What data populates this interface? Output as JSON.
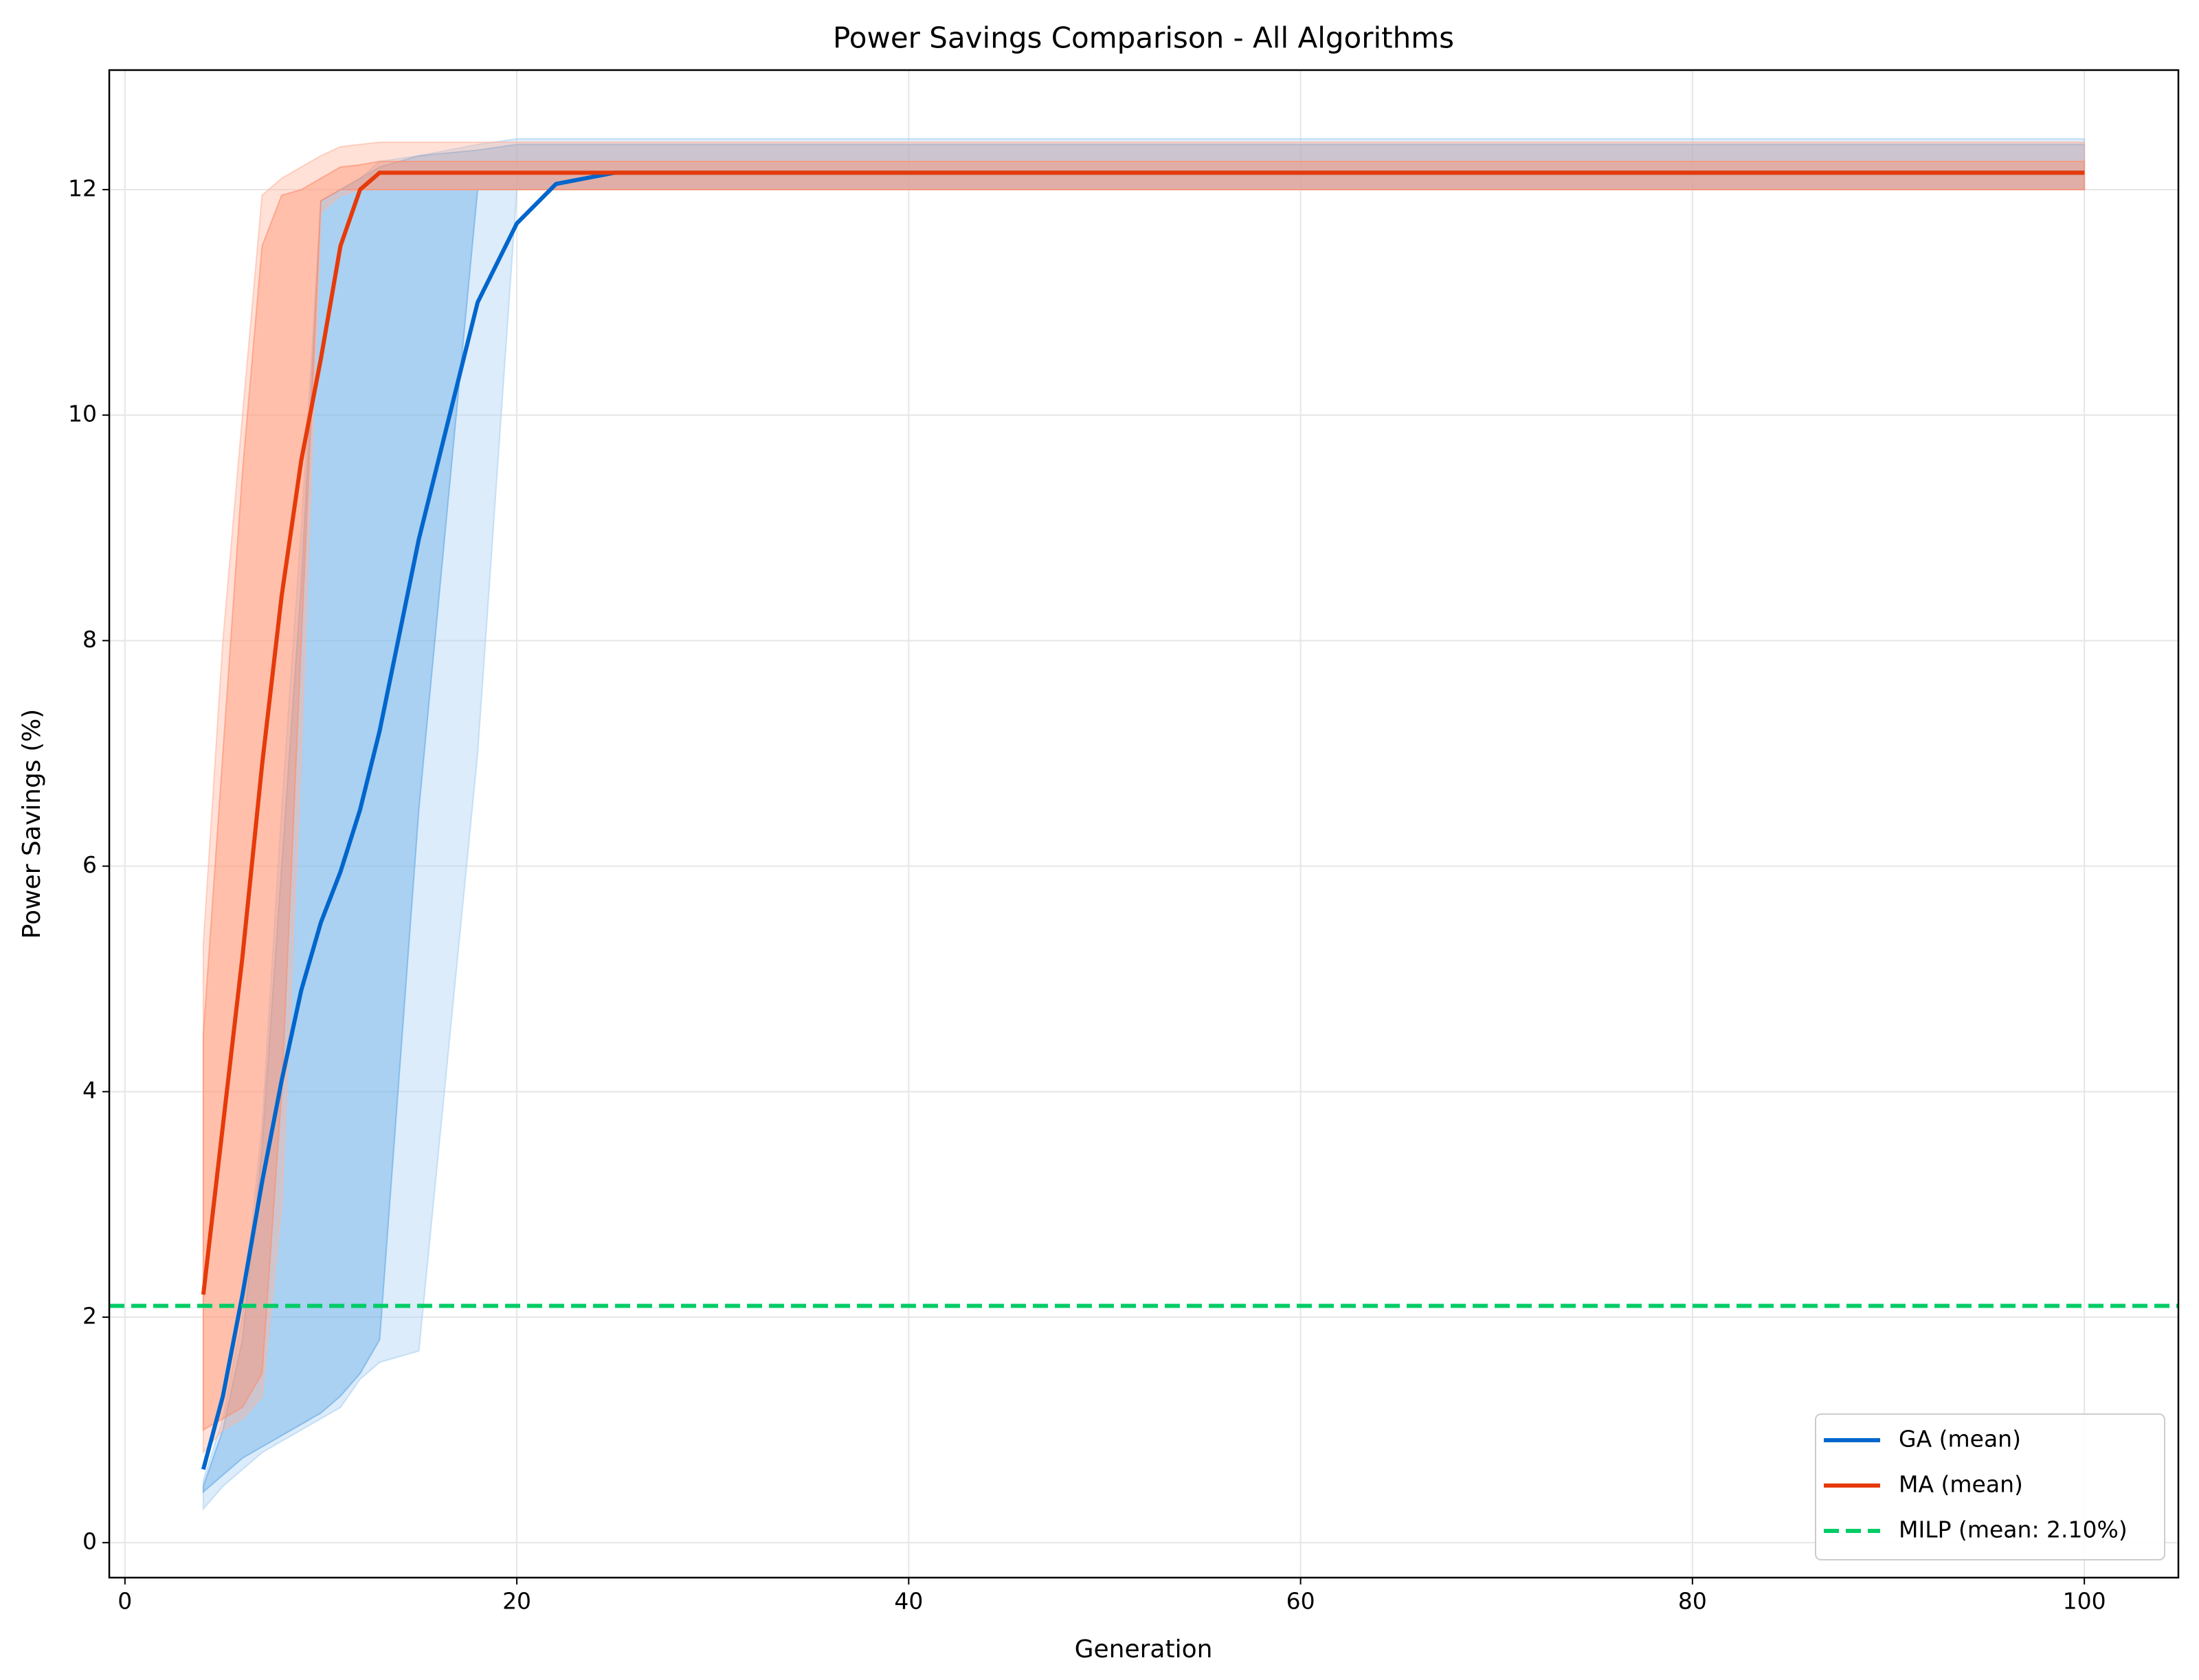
{
  "chart_data": {
    "type": "line",
    "title": "Power Savings Comparison - All Algorithms",
    "x_label": "Generation",
    "y_label": "Power Savings (%)",
    "x": [
      4,
      5,
      6,
      7,
      8,
      9,
      10,
      11,
      12,
      13,
      15,
      18,
      20,
      22,
      25,
      100
    ],
    "series": [
      {
        "name": "GA (mean)",
        "color": "#0066cc",
        "values": [
          0.65,
          1.3,
          2.2,
          3.2,
          4.1,
          4.9,
          5.5,
          5.95,
          6.5,
          7.2,
          8.9,
          11.0,
          11.7,
          12.05,
          12.15,
          12.15
        ],
        "bands": [
          {
            "color": "#a9d0f2",
            "lower": [
              0.3,
              0.5,
              0.65,
              0.8,
              0.9,
              1.0,
              1.1,
              1.2,
              1.45,
              1.6,
              1.7,
              7.0,
              12.0,
              12.0,
              12.0,
              12.0
            ],
            "upper": [
              0.55,
              1.1,
              2.0,
              3.7,
              6.5,
              9.0,
              11.9,
              12.0,
              12.1,
              12.25,
              12.3,
              12.4,
              12.45,
              12.45,
              12.45,
              12.45
            ]
          },
          {
            "color": "#5fa8e6",
            "lower": [
              0.45,
              0.6,
              0.75,
              0.85,
              0.95,
              1.05,
              1.15,
              1.3,
              1.5,
              1.8,
              6.5,
              12.0,
              12.0,
              12.0,
              12.0,
              12.0
            ],
            "upper": [
              0.5,
              1.0,
              1.8,
              3.5,
              6.0,
              8.5,
              11.9,
              12.0,
              12.1,
              12.2,
              12.3,
              12.35,
              12.4,
              12.4,
              12.4,
              12.4
            ]
          }
        ]
      },
      {
        "name": "MA (mean)",
        "color": "#e63a0a",
        "values": [
          2.2,
          3.7,
          5.2,
          6.9,
          8.4,
          9.6,
          10.5,
          11.5,
          12.0,
          12.15,
          12.15,
          12.15,
          12.15,
          12.15,
          12.15,
          12.15
        ],
        "bands": [
          {
            "color": "#ffb59e",
            "lower": [
              0.8,
              1.0,
              1.1,
              1.3,
              3.0,
              7.0,
              11.8,
              11.95,
              12.0,
              12.0,
              12.0,
              12.0,
              12.0,
              12.0,
              12.0,
              12.0
            ],
            "upper": [
              5.3,
              8.0,
              10.0,
              11.95,
              12.1,
              12.2,
              12.3,
              12.38,
              12.4,
              12.42,
              12.42,
              12.42,
              12.42,
              12.42,
              12.42,
              12.42
            ]
          },
          {
            "color": "#ff8c69",
            "lower": [
              1.0,
              1.1,
              1.2,
              1.5,
              4.0,
              8.0,
              11.9,
              12.0,
              12.0,
              12.0,
              12.0,
              12.0,
              12.0,
              12.0,
              12.0,
              12.0
            ],
            "upper": [
              4.5,
              7.0,
              9.5,
              11.5,
              11.95,
              12.0,
              12.1,
              12.2,
              12.22,
              12.25,
              12.25,
              12.25,
              12.25,
              12.25,
              12.25,
              12.25
            ]
          }
        ]
      }
    ],
    "hlines": [
      {
        "name": "MILP (mean: 2.10%)",
        "value": 2.1,
        "color": "#00cc66",
        "dashed": true
      }
    ],
    "xlim": [
      -0.8,
      104.8
    ],
    "ylim": [
      -0.31,
      13.06
    ],
    "xticks": [
      0,
      20,
      40,
      60,
      80,
      100
    ],
    "yticks": [
      0,
      2,
      4,
      6,
      8,
      10,
      12
    ],
    "grid": true,
    "legend": "lower right"
  }
}
